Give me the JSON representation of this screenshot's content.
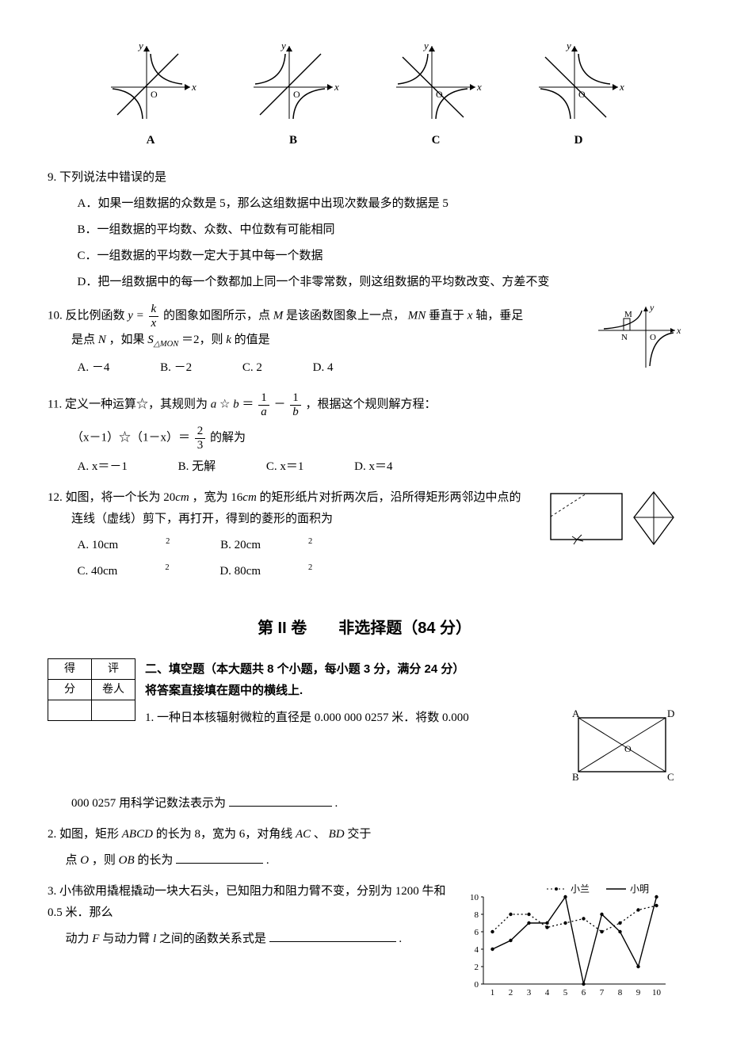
{
  "graphs": {
    "labels": [
      "A",
      "B",
      "C",
      "D"
    ],
    "axis_x": "x",
    "axis_y": "y",
    "origin": "O"
  },
  "q9": {
    "num": "9.",
    "stem": "下列说法中错误的是",
    "A": "A．如果一组数据的众数是 5，那么这组数据中出现次数最多的数据是 5",
    "B": "B．一组数据的平均数、众数、中位数有可能相同",
    "C": "C．一组数据的平均数一定大于其中每一个数据",
    "D": "D．把一组数据中的每一个数都加上同一个非零常数，则这组数据的平均数改变、方差不变"
  },
  "q10": {
    "num": "10.",
    "stem_a": "反比例函数 ",
    "stem_b": " 的图象如图所示，点 ",
    "stem_c": " 是该函数图象上一点，",
    "stem_d": " 垂直于 ",
    "stem_e": " 轴，垂足",
    "line2_a": "是点 ",
    "line2_b": "，如果 ",
    "line2_c": "＝2，则 ",
    "line2_d": " 的值是",
    "y_eq": "y =",
    "frac_num": "k",
    "frac_den": "x",
    "M": "M",
    "MN": "MN",
    "x_axis": "x",
    "N": "N",
    "S": "S",
    "MON": "△MON",
    "k": "k",
    "A": "A. －4",
    "B": "B. －2",
    "C": "C. 2",
    "D": "D. 4",
    "fig": {
      "y": "y",
      "x": "x",
      "M": "M",
      "N": "N",
      "O": "O"
    }
  },
  "q11": {
    "num": "11.",
    "stem_a": "定义一种运算☆，其规则为 ",
    "stem_b": "☆",
    "stem_c": "＝",
    "stem_d": "－",
    "stem_e": "，根据这个规则解方程：",
    "a": "a",
    "b": "b",
    "f1n": "1",
    "f1d": "a",
    "f2n": "1",
    "f2d": "b",
    "eq_a": "（x－1）☆（1－x）＝",
    "eq_fn": "2",
    "eq_fd": "3",
    "eq_b": " 的解为",
    "A": "A. x＝－1",
    "B": "B. 无解",
    "C": "C. x＝1",
    "D": "D. x＝4"
  },
  "q12": {
    "num": "12.",
    "stem_a": "如图，将一个长为 20",
    "stem_b": "，宽为 16",
    "stem_c": " 的矩形纸片对折两次后，沿所得矩形两邻边中点的",
    "stem_d": "连线（虚线）剪下，再打开，得到的菱形的面积为",
    "cm": "cm",
    "A": "A. 10cm",
    "B": "B. 20cm",
    "C": "C. 40cm",
    "D": "D. 80cm",
    "sq": "2"
  },
  "section2": {
    "title": "第 II 卷　　非选择题（84 分）",
    "score": {
      "c1": "得",
      "c2": "评",
      "r2c1": "分",
      "r2c2": "卷人"
    },
    "fill_head_a": "二、填空题（本大题共 8 个小题，每小题 3 分，满分 24 分）",
    "fill_head_b": "将答案直接填在题中的横线上.",
    "f1": {
      "num": "1.",
      "a": "一种日本核辐射微粒的直径是 0.000 000 0257 米．将数 0.000",
      "b": "000 0257 用科学记数法表示为",
      "c": "."
    },
    "rect_fig": {
      "A": "A",
      "B": "B",
      "C": "C",
      "D": "D",
      "O": "O"
    },
    "f2": {
      "num": "2.",
      "a": "如图，矩形 ",
      "ABCD": "ABCD",
      "b": " 的长为 8，宽为 6，对角线 ",
      "AC": "AC",
      "c": "、",
      "BD": "BD",
      "d": " 交于",
      "e": "点 ",
      "O": "O",
      "f": "，则 ",
      "OB": "OB",
      "g": " 的长为",
      "h": "."
    },
    "f3": {
      "num": "3.",
      "a": "小伟欲用撬棍撬动一块大石头，已知阻力和阻力臂不变，分别为 1200 牛和 0.5 米．那么",
      "b": "动力 ",
      "F": "F",
      "c": " 与动力臂 ",
      "l": "l",
      "d": " 之间的函数关系式是",
      "e": "."
    },
    "chart": {
      "legend_a": "小兰",
      "legend_b": "小明",
      "y_ticks": [
        "0",
        "2",
        "4",
        "6",
        "8",
        "10"
      ],
      "x_ticks": [
        "1",
        "2",
        "3",
        "4",
        "5",
        "6",
        "7",
        "8",
        "9",
        "10"
      ],
      "lan": [
        6,
        8,
        8,
        6.5,
        7,
        7.5,
        6,
        7,
        8.5,
        9
      ],
      "ming": [
        4,
        5,
        7,
        7,
        10,
        0,
        8,
        6,
        2,
        10
      ],
      "colors": {
        "axis": "#000",
        "lan": "#000",
        "ming": "#000"
      }
    }
  }
}
